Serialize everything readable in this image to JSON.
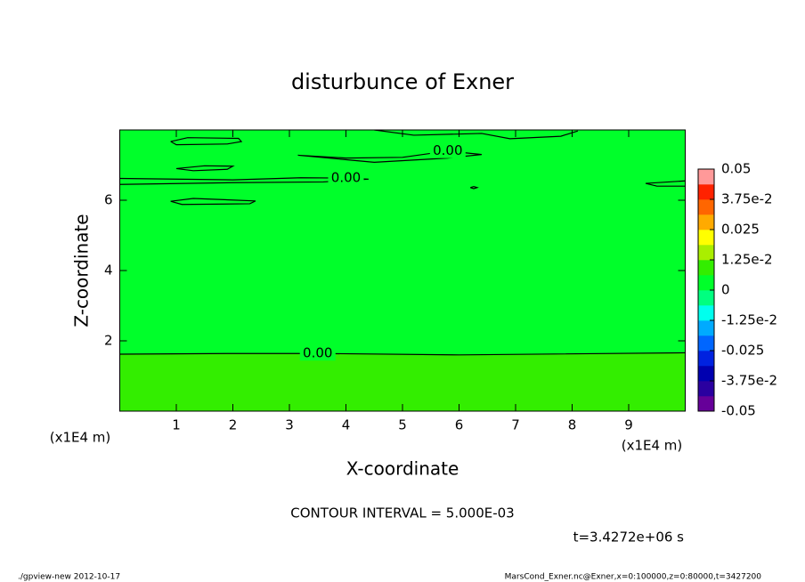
{
  "chart_data": {
    "type": "contour",
    "title": "disturbunce of Exner",
    "xlabel": "X-coordinate",
    "ylabel": "Z-coordinate",
    "x_unit": "(x1E4 m)",
    "xlim": [
      0,
      10
    ],
    "ylim": [
      0,
      8
    ],
    "xticks": [
      1,
      2,
      3,
      4,
      5,
      6,
      7,
      8,
      9
    ],
    "yticks": [
      2,
      4,
      6
    ],
    "field_color": "#00ff2a",
    "contours": [
      {
        "level": 0,
        "label": "0.00",
        "fill_below": "#33ee00",
        "x": [
          0,
          2,
          3.5,
          6,
          10
        ],
        "z": [
          1.62,
          1.64,
          1.64,
          1.6,
          1.66
        ]
      },
      {
        "level": 0,
        "label": "0.00",
        "x": [
          0,
          2,
          3.2,
          4.0,
          4.4,
          3.6,
          2,
          0
        ],
        "z": [
          6.62,
          6.58,
          6.64,
          6.63,
          6.6,
          6.52,
          6.5,
          6.45
        ]
      },
      {
        "level": 0,
        "label": "0.00",
        "x": [
          3.15,
          4,
          5,
          5.8,
          6.4,
          5.8,
          4.5,
          3.15
        ],
        "z": [
          7.28,
          7.2,
          7.22,
          7.4,
          7.3,
          7.2,
          7.08,
          7.28
        ]
      },
      {
        "level": 0,
        "x": [
          0.9,
          1.2,
          2.1,
          2.15,
          1.9,
          1.0,
          0.9
        ],
        "z": [
          7.67,
          7.78,
          7.76,
          7.67,
          7.6,
          7.58,
          7.67
        ]
      },
      {
        "level": 0,
        "x": [
          1.0,
          1.5,
          2.0,
          1.9,
          1.3,
          1.0
        ],
        "z": [
          6.9,
          6.98,
          6.97,
          6.88,
          6.84,
          6.9
        ]
      },
      {
        "level": 0,
        "x": [
          0.9,
          1.3,
          2.4,
          2.3,
          1.1,
          0.9
        ],
        "z": [
          5.97,
          6.05,
          5.98,
          5.9,
          5.88,
          5.97
        ]
      },
      {
        "level": 0,
        "x": [
          4.5,
          5.2,
          6.4,
          6.9,
          7.8,
          8.1
        ],
        "z": [
          8.0,
          7.85,
          7.9,
          7.75,
          7.82,
          7.97
        ]
      },
      {
        "level": 0,
        "x": [
          6.2,
          6.26,
          6.32,
          6.26,
          6.2
        ],
        "z": [
          6.36,
          6.39,
          6.36,
          6.33,
          6.36
        ]
      },
      {
        "level": 0,
        "x": [
          10,
          9.3,
          9.5,
          10
        ],
        "z": [
          6.55,
          6.48,
          6.4,
          6.4
        ]
      }
    ],
    "colorbar": {
      "lim": [
        -0.05,
        0.05
      ],
      "colors": [
        "#660099",
        "#2a00a0",
        "#0000b0",
        "#0022e0",
        "#0066ff",
        "#00aaff",
        "#00ffee",
        "#00ff80",
        "#00ff2a",
        "#33ee00",
        "#aaee00",
        "#ffff00",
        "#ffaa00",
        "#ff6600",
        "#ff2200",
        "#ff9999"
      ],
      "ticks": [
        0.05,
        {
          "value": 0.0375,
          "label": "3.75e-2"
        },
        0.025,
        {
          "value": 0.0125,
          "label": "1.25e-2"
        },
        0,
        {
          "value": -0.0125,
          "label": "-1.25e-2"
        },
        -0.025,
        {
          "value": -0.0375,
          "label": "-3.75e-2"
        },
        -0.05
      ]
    },
    "annotations": [
      "CONTOUR INTERVAL = 5.000E-03",
      "t=3.4272e+06 s"
    ],
    "footer_left": "./gpview-new  2012-10-17",
    "footer_right": "MarsCond_Exner.nc@Exner,x=0:100000,z=0:80000,t=3427200"
  }
}
